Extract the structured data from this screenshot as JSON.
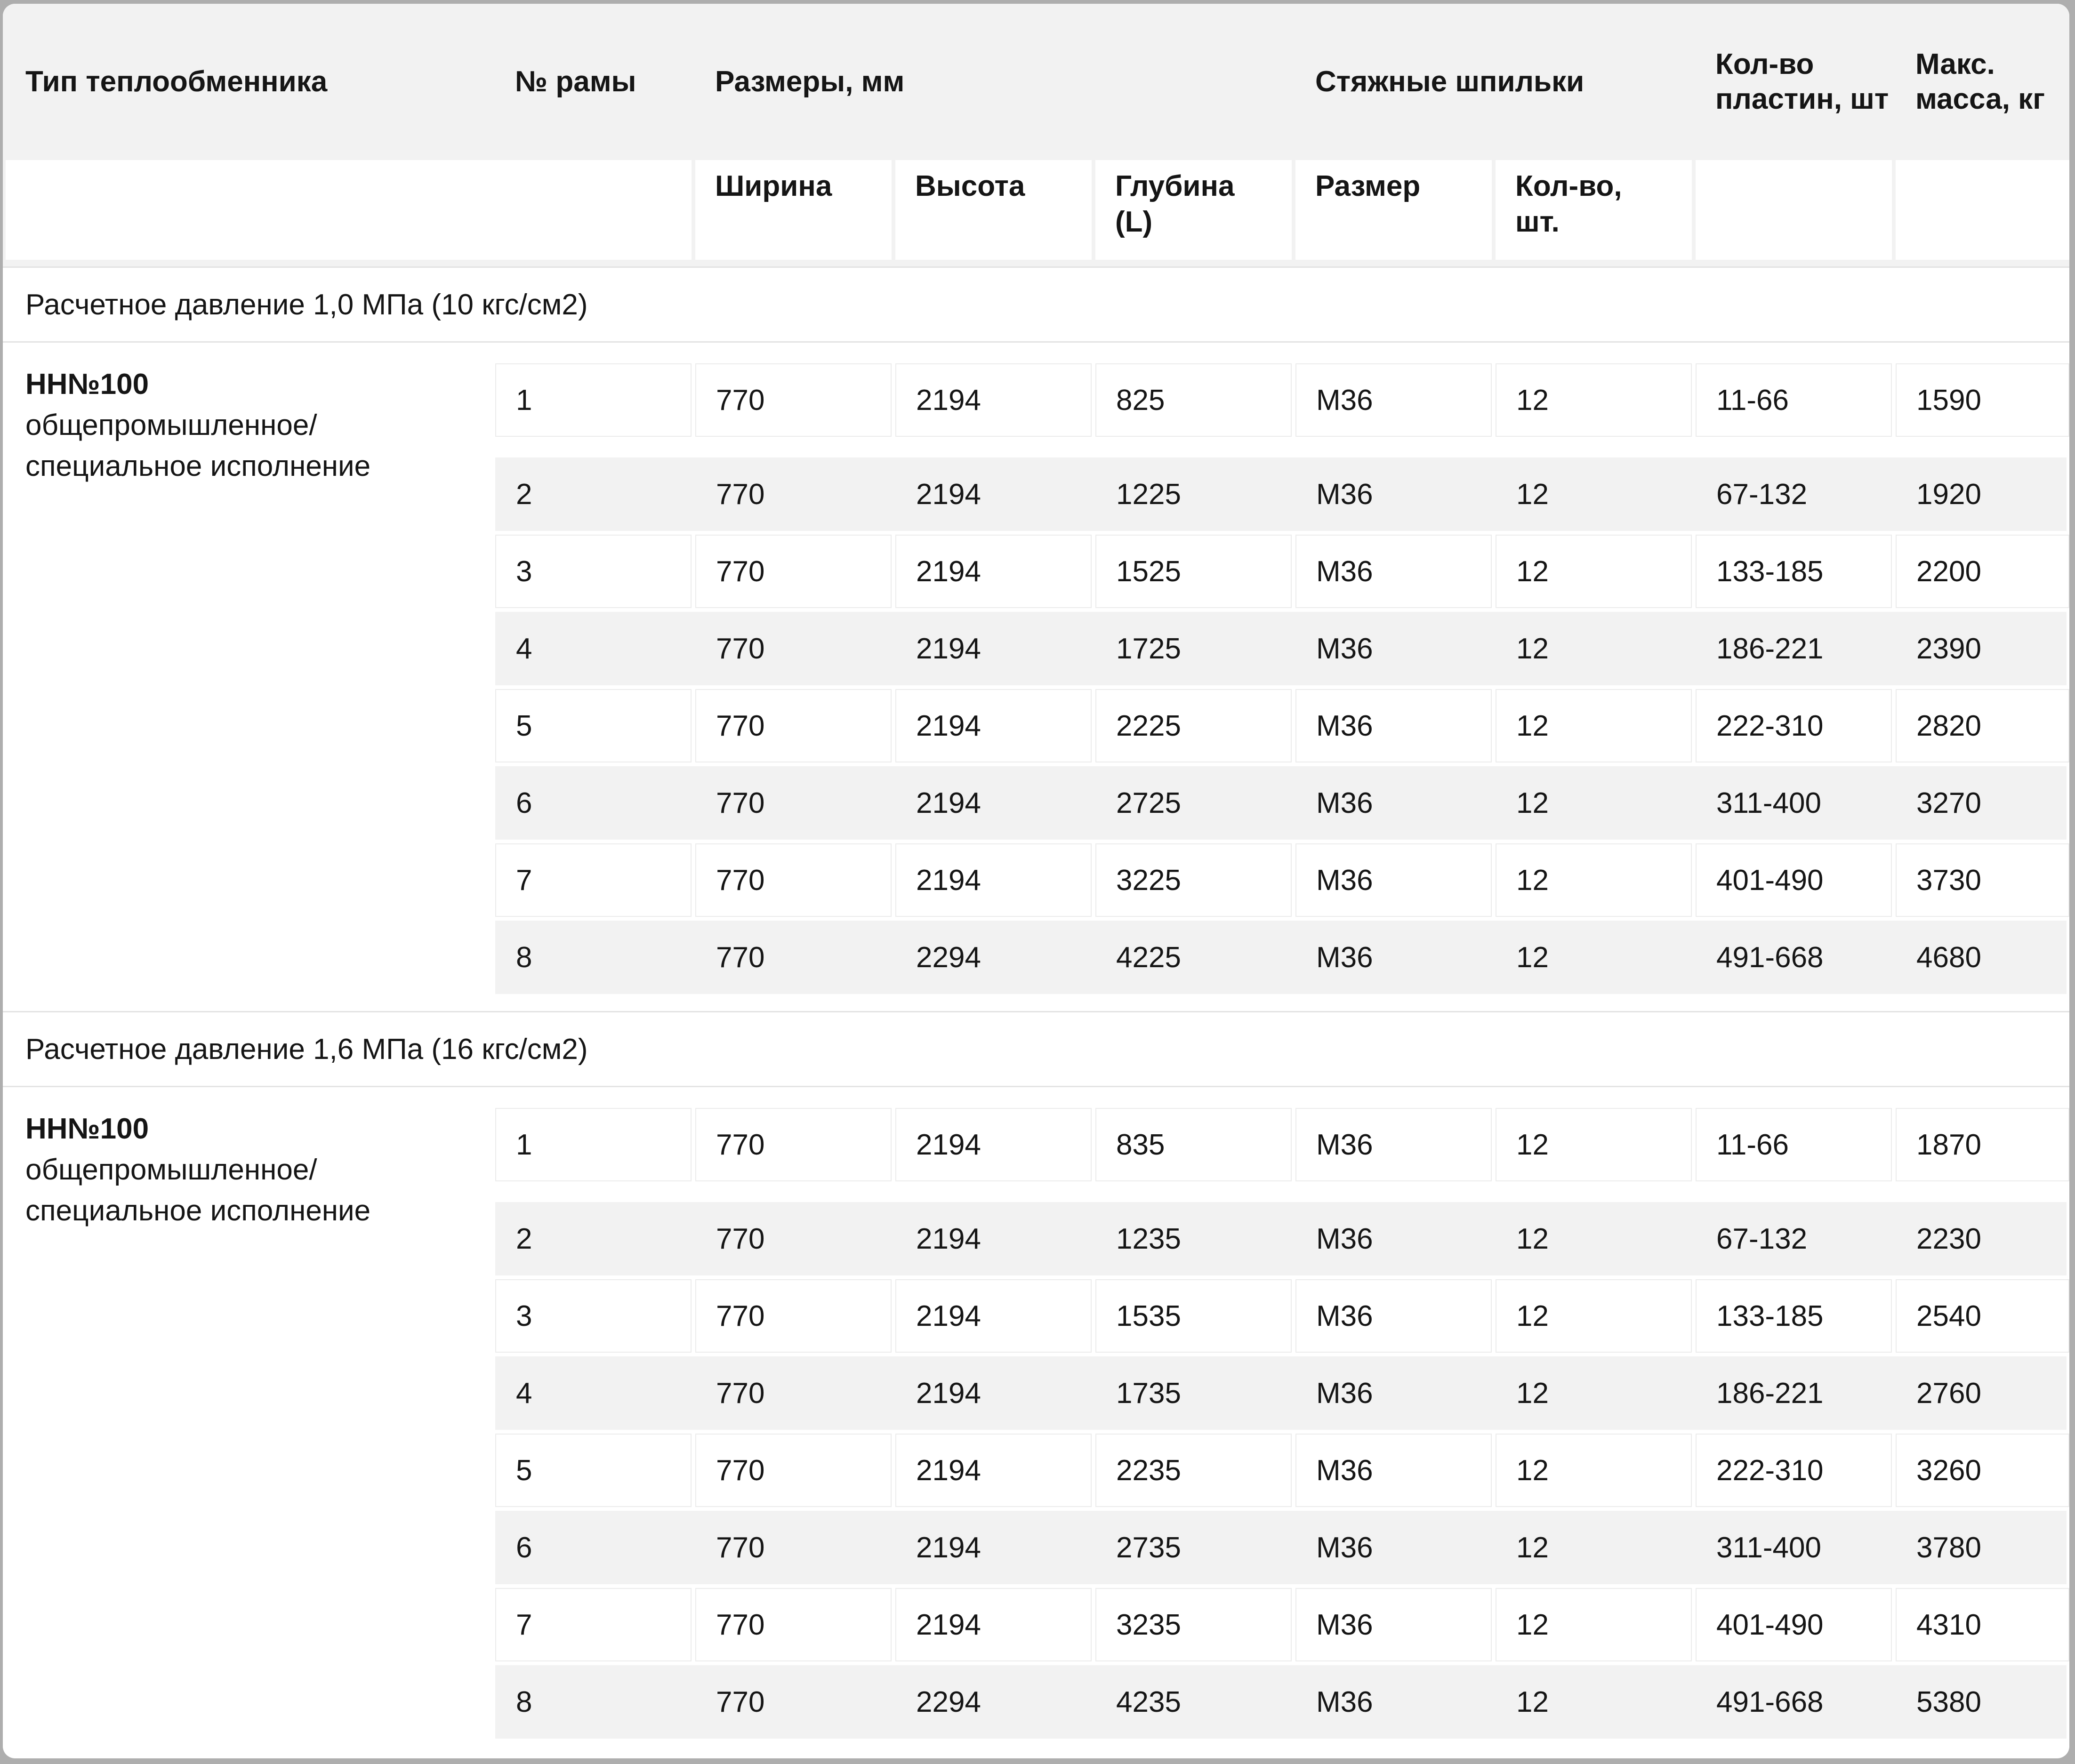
{
  "header": {
    "col_type": "Тип теплообменника",
    "col_frame": "№ рамы",
    "col_dims": "Размеры, мм",
    "col_studs": "Стяжные шпильки",
    "col_plates": "Кол-во пластин, шт",
    "col_mass": "Макс. масса, кг",
    "sub_width": "Ширина",
    "sub_height": "Высота",
    "sub_depth": "Глубина (L)",
    "sub_size": "Размер",
    "sub_qty": "Кол-во, шт."
  },
  "sections": [
    {
      "title": "Расчетное давление 1,0 МПа (10 кгс/см2)",
      "group": {
        "model": "НН№100",
        "desc1": "общепромышленное/",
        "desc2": "специальное исполнение"
      },
      "rows": [
        {
          "frame": "1",
          "width": "770",
          "height": "2194",
          "depth": "825",
          "stud_size": "М36",
          "stud_qty": "12",
          "plates": "11-66",
          "mass": "1590"
        },
        {
          "frame": "2",
          "width": "770",
          "height": "2194",
          "depth": "1225",
          "stud_size": "М36",
          "stud_qty": "12",
          "plates": "67-132",
          "mass": "1920"
        },
        {
          "frame": "3",
          "width": "770",
          "height": "2194",
          "depth": "1525",
          "stud_size": "М36",
          "stud_qty": "12",
          "plates": "133-185",
          "mass": "2200"
        },
        {
          "frame": "4",
          "width": "770",
          "height": "2194",
          "depth": "1725",
          "stud_size": "М36",
          "stud_qty": "12",
          "plates": "186-221",
          "mass": "2390"
        },
        {
          "frame": "5",
          "width": "770",
          "height": "2194",
          "depth": "2225",
          "stud_size": "М36",
          "stud_qty": "12",
          "plates": "222-310",
          "mass": "2820"
        },
        {
          "frame": "6",
          "width": "770",
          "height": "2194",
          "depth": "2725",
          "stud_size": "М36",
          "stud_qty": "12",
          "plates": "311-400",
          "mass": "3270"
        },
        {
          "frame": "7",
          "width": "770",
          "height": "2194",
          "depth": "3225",
          "stud_size": "М36",
          "stud_qty": "12",
          "plates": "401-490",
          "mass": "3730"
        },
        {
          "frame": "8",
          "width": "770",
          "height": "2294",
          "depth": "4225",
          "stud_size": "М36",
          "stud_qty": "12",
          "plates": "491-668",
          "mass": "4680"
        }
      ]
    },
    {
      "title": "Расчетное давление 1,6 МПа (16 кгс/см2)",
      "group": {
        "model": "НН№100",
        "desc1": "общепромышленное/",
        "desc2": "специальное исполнение"
      },
      "rows": [
        {
          "frame": "1",
          "width": "770",
          "height": "2194",
          "depth": "835",
          "stud_size": "М36",
          "stud_qty": "12",
          "plates": "11-66",
          "mass": "1870"
        },
        {
          "frame": "2",
          "width": "770",
          "height": "2194",
          "depth": "1235",
          "stud_size": "М36",
          "stud_qty": "12",
          "plates": "67-132",
          "mass": "2230"
        },
        {
          "frame": "3",
          "width": "770",
          "height": "2194",
          "depth": "1535",
          "stud_size": "М36",
          "stud_qty": "12",
          "plates": "133-185",
          "mass": "2540"
        },
        {
          "frame": "4",
          "width": "770",
          "height": "2194",
          "depth": "1735",
          "stud_size": "М36",
          "stud_qty": "12",
          "plates": "186-221",
          "mass": "2760"
        },
        {
          "frame": "5",
          "width": "770",
          "height": "2194",
          "depth": "2235",
          "stud_size": "М36",
          "stud_qty": "12",
          "plates": "222-310",
          "mass": "3260"
        },
        {
          "frame": "6",
          "width": "770",
          "height": "2194",
          "depth": "2735",
          "stud_size": "М36",
          "stud_qty": "12",
          "plates": "311-400",
          "mass": "3780"
        },
        {
          "frame": "7",
          "width": "770",
          "height": "2194",
          "depth": "3235",
          "stud_size": "М36",
          "stud_qty": "12",
          "plates": "401-490",
          "mass": "4310"
        },
        {
          "frame": "8",
          "width": "770",
          "height": "2294",
          "depth": "4235",
          "stud_size": "М36",
          "stud_qty": "12",
          "plates": "491-668",
          "mass": "5380"
        }
      ]
    }
  ],
  "colors": {
    "header_bg": "#f2f2f2",
    "row_alt_bg": "#f2f2f2",
    "cell_border": "#ececec",
    "hairline": "#e3e3e3",
    "frame_bg": "#aeaeae",
    "text": "#151515"
  }
}
